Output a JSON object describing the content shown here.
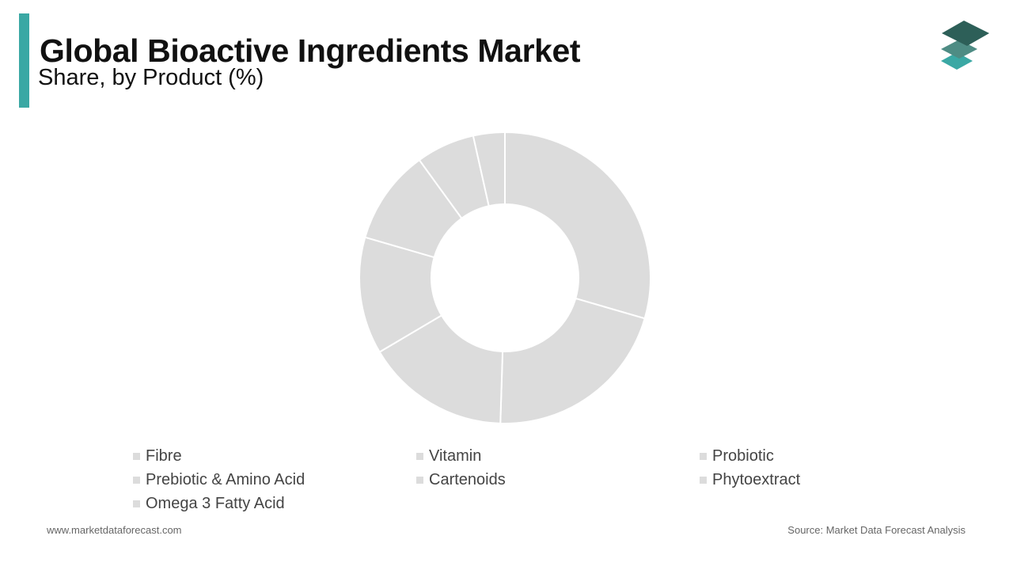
{
  "header": {
    "title": "Global Bioactive Ingredients Market",
    "subtitle": "Share, by Product  (%)"
  },
  "colors": {
    "accent": "#3aa8a4",
    "slice_fill": "#dcdcdc",
    "slice_stroke": "#ffffff",
    "logo_top": "#2d5f58",
    "logo_mid": "#4e8c84",
    "logo_bottom": "#3aa8a4"
  },
  "chart_data": {
    "type": "donut",
    "categories": [
      "Fibre",
      "Vitamin",
      "Probiotic",
      "Prebiotic & Amino Acid",
      "Cartenoids",
      "Phytoextract",
      "Omega 3 Fatty Acid"
    ],
    "values": [
      29.5,
      21.0,
      16.0,
      13.0,
      10.5,
      6.5,
      3.5
    ],
    "legend_position": "bottom"
  },
  "footer": {
    "website": "www.marketdataforecast.com",
    "source": "Source: Market Data Forecast Analysis"
  }
}
